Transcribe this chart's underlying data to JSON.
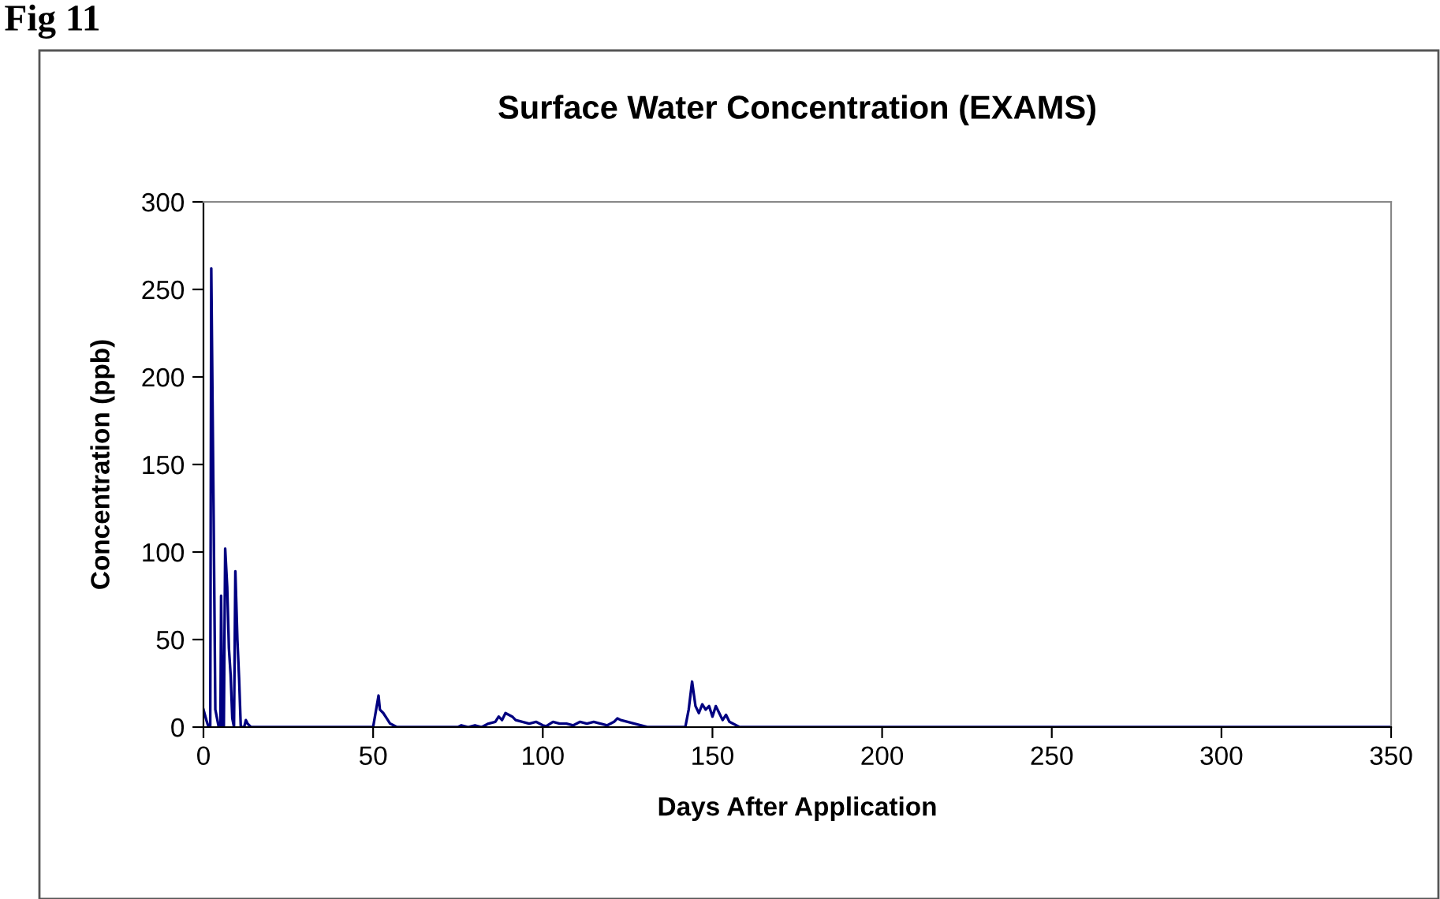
{
  "chart_data": {
    "type": "line",
    "title": "Surface Water Concentration (EXAMS)",
    "xlabel": "Days After Application",
    "ylabel": "Concentration (ppb)",
    "annotations": [
      "Fig 11"
    ],
    "xlim": [
      0,
      350
    ],
    "xticks": [
      0,
      50,
      100,
      150,
      200,
      250,
      300,
      350
    ],
    "ylim": [
      0,
      300
    ],
    "yticks": [
      0,
      50,
      100,
      150,
      200,
      250,
      300
    ],
    "grid": false,
    "legend": false,
    "series": [
      {
        "color": "#000080",
        "x": [
          0,
          1,
          1.5,
          2,
          2.3,
          3,
          3.5,
          4,
          4.5,
          5,
          5.2,
          5.6,
          6,
          6.4,
          7,
          7.5,
          8,
          8.5,
          9,
          9.4,
          10,
          10.5,
          11,
          12,
          12.5,
          13,
          14,
          50,
          51.6,
          52,
          53,
          54,
          55,
          56,
          57,
          75,
          76,
          78,
          80,
          82,
          84,
          86,
          87,
          88,
          89,
          90,
          91,
          92,
          94,
          96,
          98,
          100,
          101,
          103,
          105,
          107,
          109,
          111,
          113,
          115,
          117,
          119,
          121,
          122,
          123,
          125,
          127,
          129,
          131,
          142,
          143,
          144,
          145,
          146,
          147,
          148,
          149,
          150,
          151,
          152,
          153,
          154,
          155,
          156,
          157,
          158,
          350
        ],
        "values": [
          10,
          3,
          0,
          0,
          262,
          120,
          10,
          5,
          0,
          0,
          75,
          0,
          0,
          102,
          80,
          45,
          30,
          5,
          0,
          89,
          50,
          28,
          0,
          0,
          4,
          2,
          0,
          0,
          18,
          10,
          8,
          5,
          2,
          1,
          0,
          0,
          1,
          0,
          1,
          0,
          2,
          3,
          6,
          4,
          8,
          7,
          6,
          4,
          3,
          2,
          3,
          1,
          0.5,
          3,
          2,
          2,
          1,
          3,
          2,
          3,
          2,
          1,
          3,
          5,
          4,
          3,
          2,
          1,
          0,
          0,
          10,
          26,
          12,
          8,
          13,
          10,
          12,
          6,
          12,
          8,
          4,
          7,
          3,
          2,
          1,
          0,
          0
        ]
      }
    ]
  }
}
